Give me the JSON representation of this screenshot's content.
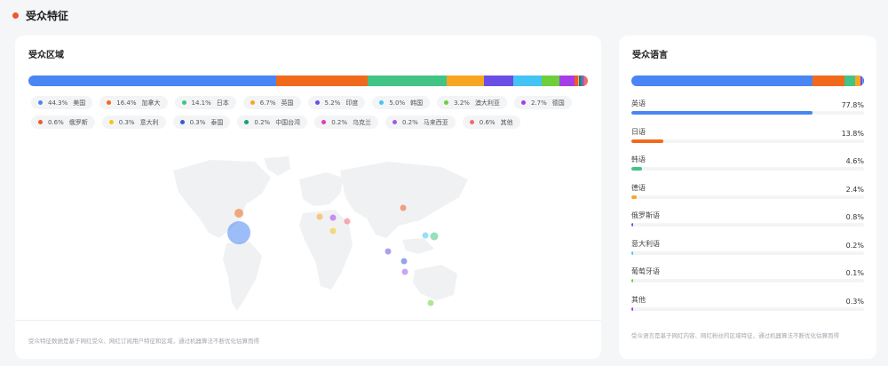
{
  "header": {
    "title": "受众特征"
  },
  "region": {
    "title": "受众区域",
    "items": [
      {
        "pct": "44.3%",
        "name": "美国",
        "value": 44.3,
        "color": "#4a86f3"
      },
      {
        "pct": "16.4%",
        "name": "加拿大",
        "value": 16.4,
        "color": "#f16a1c"
      },
      {
        "pct": "14.1%",
        "name": "日本",
        "value": 14.1,
        "color": "#41c486"
      },
      {
        "pct": "6.7%",
        "name": "英国",
        "value": 6.7,
        "color": "#f7a623"
      },
      {
        "pct": "5.2%",
        "name": "印度",
        "value": 5.2,
        "color": "#6b4ee6"
      },
      {
        "pct": "5.0%",
        "name": "韩国",
        "value": 5.0,
        "color": "#44c3f5"
      },
      {
        "pct": "3.2%",
        "name": "澳大利亚",
        "value": 3.2,
        "color": "#6fcf3b"
      },
      {
        "pct": "2.7%",
        "name": "德国",
        "value": 2.7,
        "color": "#a63ee8"
      },
      {
        "pct": "0.6%",
        "name": "俄罗斯",
        "value": 0.6,
        "color": "#f05a24"
      },
      {
        "pct": "0.3%",
        "name": "意大利",
        "value": 0.3,
        "color": "#f5c518"
      },
      {
        "pct": "0.3%",
        "name": "泰国",
        "value": 0.3,
        "color": "#3b5bd6"
      },
      {
        "pct": "0.2%",
        "name": "中国台湾",
        "value": 0.2,
        "color": "#16a36b"
      },
      {
        "pct": "0.2%",
        "name": "乌克兰",
        "value": 0.2,
        "color": "#e23bb8"
      },
      {
        "pct": "0.2%",
        "name": "马来西亚",
        "value": 0.2,
        "color": "#9b5de5"
      },
      {
        "pct": "0.6%",
        "name": "其他",
        "value": 0.6,
        "color": "#f26b6b"
      }
    ],
    "note": "受众特征数据是基于网红受众、网红订阅用户特征和区域，通过机器算法不断优化估算而得"
  },
  "language": {
    "title": "受众语言",
    "items": [
      {
        "name": "英语",
        "pct": "77.8%",
        "value": 77.8,
        "color": "#4a86f3"
      },
      {
        "name": "日语",
        "pct": "13.8%",
        "value": 13.8,
        "color": "#f16a1c"
      },
      {
        "name": "韩语",
        "pct": "4.6%",
        "value": 4.6,
        "color": "#41c486"
      },
      {
        "name": "德语",
        "pct": "2.4%",
        "value": 2.4,
        "color": "#f7a623"
      },
      {
        "name": "俄罗斯语",
        "pct": "0.8%",
        "value": 0.8,
        "color": "#6b4ee6"
      },
      {
        "name": "意大利语",
        "pct": "0.2%",
        "value": 0.2,
        "color": "#44c3f5"
      },
      {
        "name": "葡萄牙语",
        "pct": "0.1%",
        "value": 0.1,
        "color": "#6fcf3b"
      },
      {
        "name": "其他",
        "pct": "0.3%",
        "value": 0.3,
        "color": "#a63ee8"
      }
    ],
    "note": "受众语言是基于网红内容、网红粉丝的区域特征，通过机器算法不断优化估算而得"
  }
}
